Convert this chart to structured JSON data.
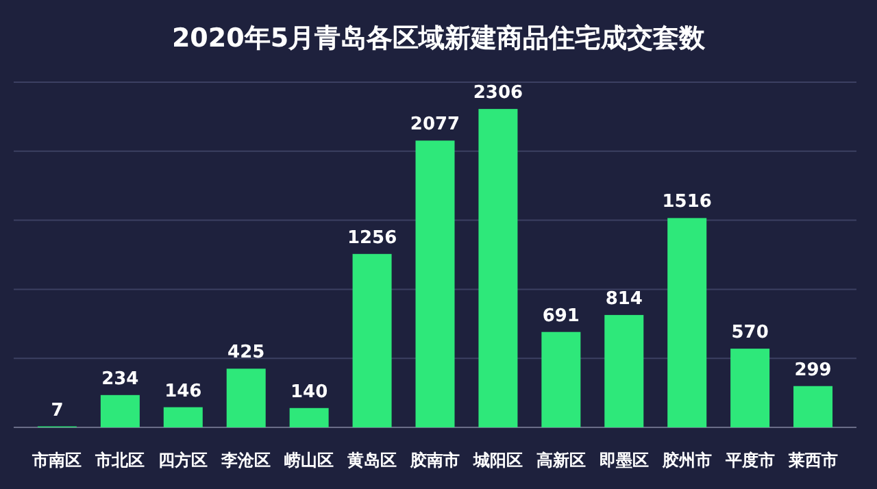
{
  "chart_data": {
    "type": "bar",
    "title": "2020年5月青岛各区域新建商品住宅成交套数",
    "categories": [
      "市南区",
      "市北区",
      "四方区",
      "李沧区",
      "崂山区",
      "黄岛区",
      "胶南市",
      "城阳区",
      "高新区",
      "即墨区",
      "胶州市",
      "平度市",
      "莱西市"
    ],
    "values": [
      7,
      234,
      146,
      425,
      140,
      1256,
      2077,
      2306,
      691,
      814,
      1516,
      570,
      299
    ],
    "color": "#2ee87a",
    "ylim": [
      0,
      2500
    ],
    "yticks": [
      {
        "value": 0,
        "label": null
      },
      {
        "value": 500,
        "label": null
      },
      {
        "value": 1000,
        "label": null
      },
      {
        "value": 1500,
        "label": null
      },
      {
        "value": 2000,
        "label": null
      },
      {
        "value": 2500,
        "label": null
      }
    ],
    "tick_labels": "x",
    "grid": "y",
    "data_labels": true
  }
}
